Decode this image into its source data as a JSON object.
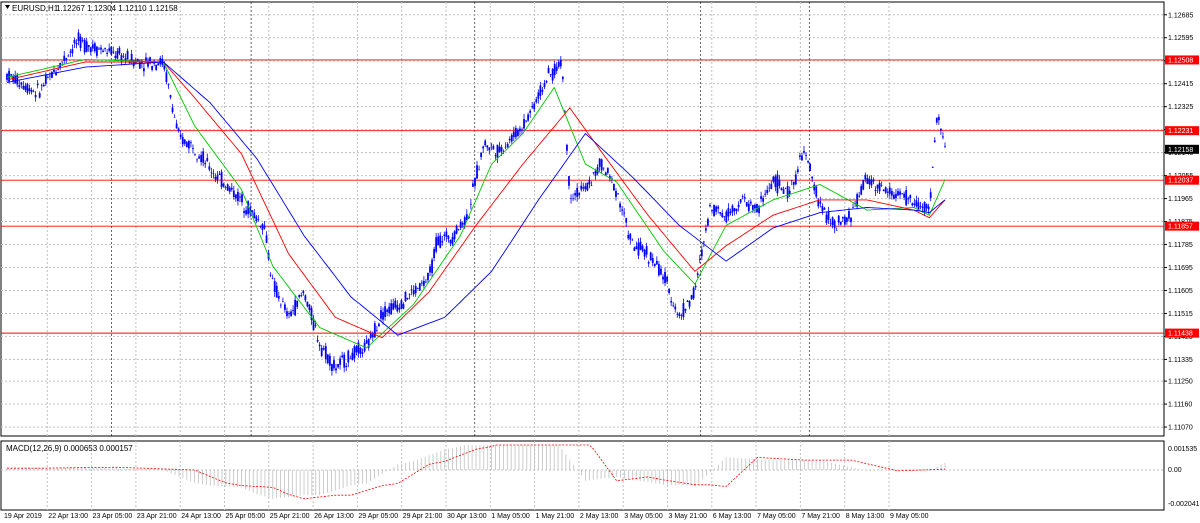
{
  "window": {
    "symbol": "EURUSD,H1",
    "ohlc": "1.12267 1.12304 1.12110 1.12158"
  },
  "macd_panel": {
    "title": "MACD(12,26,9) 0.000653 0.000157",
    "ticks": [
      "0.001535",
      "0.00",
      "-0.002041"
    ]
  },
  "colors": {
    "candles": "#0000ff",
    "ma_fast": "#00c800",
    "ma_mid": "#ff0000",
    "ma_slow": "#0000ff",
    "level_line": "#ff0000",
    "level_tag": "#ff0000",
    "grid": "#c0c0c0",
    "macd_hist": "#c0c0c0",
    "macd_signal": "#ff0000"
  },
  "chart_data": {
    "type": "line",
    "grid": true,
    "ylim": [
      1.11035,
      1.12735
    ],
    "x": [
      "19 Apr 2019",
      "22 Apr 13:00",
      "23 Apr 05:00",
      "23 Apr 21:00",
      "24 Apr 13:00",
      "25 Apr 05:00",
      "25 Apr 21:00",
      "26 Apr 13:00",
      "29 Apr 05:00",
      "29 Apr 21:00",
      "30 Apr 13:00",
      "1 May 05:00",
      "1 May 21:00",
      "2 May 13:00",
      "3 May 05:00",
      "3 May 21:00",
      "6 May 13:00",
      "7 May 05:00",
      "7 May 21:00",
      "8 May 13:00",
      "9 May 05:00"
    ],
    "y_ticks": [
      "1.12685",
      "1.12595",
      "1.12505",
      "1.12415",
      "1.12325",
      "1.12235",
      "1.12145",
      "1.12055",
      "1.11965",
      "1.11875",
      "1.11785",
      "1.11695",
      "1.11605",
      "1.11515",
      "1.11425",
      "1.11335",
      "1.11250",
      "1.11160",
      "1.11070"
    ],
    "levels": [
      {
        "value": 1.12508,
        "label": "1.12508"
      },
      {
        "value": 1.12231,
        "label": "1.12231"
      },
      {
        "value": 1.12037,
        "label": "1.12037"
      },
      {
        "value": 1.11857,
        "label": "1.11857"
      },
      {
        "value": 1.11438,
        "label": "1.11438"
      }
    ],
    "current_price": {
      "value": 1.12158,
      "label": "1.12158"
    },
    "close_points": [
      [
        0,
        1.1245
      ],
      [
        4,
        1.1238
      ],
      [
        9,
        1.1258
      ],
      [
        13,
        1.1254
      ],
      [
        17,
        1.125
      ],
      [
        20,
        1.125
      ],
      [
        22,
        1.122
      ],
      [
        24,
        1.1217
      ],
      [
        26,
        1.1208
      ],
      [
        28,
        1.1202
      ],
      [
        30,
        1.1196
      ],
      [
        33,
        1.1185
      ],
      [
        34,
        1.1163
      ],
      [
        36,
        1.115
      ],
      [
        38,
        1.116
      ],
      [
        40,
        1.114
      ],
      [
        42,
        1.113
      ],
      [
        44,
        1.1135
      ],
      [
        46,
        1.1138
      ],
      [
        48,
        1.1152
      ],
      [
        50,
        1.1155
      ],
      [
        52,
        1.116
      ],
      [
        54,
        1.1165
      ],
      [
        55,
        1.118
      ],
      [
        57,
        1.1182
      ],
      [
        59,
        1.119
      ],
      [
        60,
        1.1205
      ],
      [
        61,
        1.1218
      ],
      [
        63,
        1.1215
      ],
      [
        66,
        1.1225
      ],
      [
        69,
        1.1243
      ],
      [
        71,
        1.125
      ],
      [
        72,
        1.1198
      ],
      [
        74,
        1.12
      ],
      [
        76,
        1.121
      ],
      [
        78,
        1.12
      ],
      [
        80,
        1.1178
      ],
      [
        82,
        1.1175
      ],
      [
        84,
        1.1166
      ],
      [
        86,
        1.115
      ],
      [
        88,
        1.116
      ],
      [
        90,
        1.1194
      ],
      [
        92,
        1.119
      ],
      [
        94,
        1.1196
      ],
      [
        96,
        1.1192
      ],
      [
        98,
        1.1204
      ],
      [
        100,
        1.1198
      ],
      [
        102,
        1.1215
      ],
      [
        104,
        1.1194
      ],
      [
        106,
        1.1185
      ],
      [
        108,
        1.119
      ],
      [
        110,
        1.1205
      ],
      [
        112,
        1.12
      ],
      [
        114,
        1.1198
      ],
      [
        116,
        1.1195
      ],
      [
        118,
        1.1192
      ],
      [
        119,
        1.123
      ],
      [
        120,
        1.1216
      ]
    ],
    "series": [
      {
        "values": [
          [
            0,
            1.1244
          ],
          [
            10,
            1.1251
          ],
          [
            20,
            1.125
          ],
          [
            24,
            1.1225
          ],
          [
            30,
            1.12
          ],
          [
            34,
            1.117
          ],
          [
            40,
            1.1146
          ],
          [
            46,
            1.1138
          ],
          [
            52,
            1.1155
          ],
          [
            58,
            1.1182
          ],
          [
            62,
            1.121
          ],
          [
            66,
            1.1222
          ],
          [
            70,
            1.124
          ],
          [
            74,
            1.121
          ],
          [
            78,
            1.1203
          ],
          [
            84,
            1.1176
          ],
          [
            88,
            1.1163
          ],
          [
            92,
            1.1186
          ],
          [
            98,
            1.1196
          ],
          [
            104,
            1.1202
          ],
          [
            110,
            1.1192
          ],
          [
            116,
            1.1193
          ],
          [
            118,
            1.119
          ],
          [
            120,
            1.1204
          ]
        ]
      },
      {
        "values": [
          [
            0,
            1.1243
          ],
          [
            10,
            1.125
          ],
          [
            20,
            1.125
          ],
          [
            24,
            1.1236
          ],
          [
            30,
            1.1214
          ],
          [
            36,
            1.1175
          ],
          [
            42,
            1.115
          ],
          [
            48,
            1.1142
          ],
          [
            54,
            1.116
          ],
          [
            60,
            1.1186
          ],
          [
            66,
            1.121
          ],
          [
            72,
            1.1232
          ],
          [
            76,
            1.1215
          ],
          [
            82,
            1.119
          ],
          [
            88,
            1.1168
          ],
          [
            92,
            1.1178
          ],
          [
            98,
            1.119
          ],
          [
            104,
            1.1196
          ],
          [
            110,
            1.1196
          ],
          [
            116,
            1.1192
          ],
          [
            118,
            1.1189
          ],
          [
            120,
            1.1196
          ]
        ]
      },
      {
        "values": [
          [
            0,
            1.1242
          ],
          [
            10,
            1.1248
          ],
          [
            20,
            1.125
          ],
          [
            26,
            1.1234
          ],
          [
            32,
            1.1212
          ],
          [
            38,
            1.1182
          ],
          [
            44,
            1.1158
          ],
          [
            50,
            1.1143
          ],
          [
            56,
            1.115
          ],
          [
            62,
            1.1168
          ],
          [
            68,
            1.1196
          ],
          [
            74,
            1.1222
          ],
          [
            80,
            1.1205
          ],
          [
            86,
            1.1186
          ],
          [
            92,
            1.1172
          ],
          [
            98,
            1.1185
          ],
          [
            104,
            1.1191
          ],
          [
            110,
            1.1193
          ],
          [
            116,
            1.1192
          ],
          [
            118,
            1.1191
          ],
          [
            120,
            1.1196
          ]
        ]
      }
    ]
  }
}
